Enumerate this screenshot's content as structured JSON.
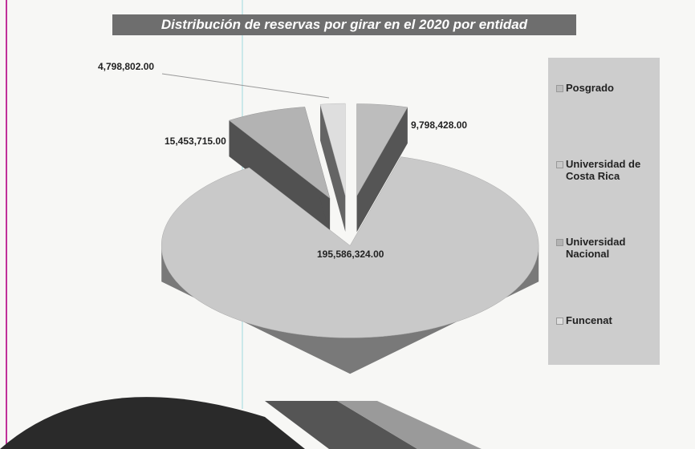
{
  "chart_data": {
    "type": "pie3d",
    "title": "Distribución de reservas por girar en el  2020 por entidad",
    "categories": [
      "Posgrado",
      "Universidad de Costa Rica",
      "Universidad Nacional",
      "Funcenat"
    ],
    "values": [
      9798428,
      195586324,
      15453715,
      4798802
    ],
    "value_labels": [
      "9,798,428.00",
      "195,586,324.00",
      "15,453,715.00",
      "4,798,802.00"
    ],
    "colors": [
      "#bdbdbd",
      "#c9c9c9",
      "#b3b3b3",
      "#dedede"
    ],
    "legend": "right"
  }
}
